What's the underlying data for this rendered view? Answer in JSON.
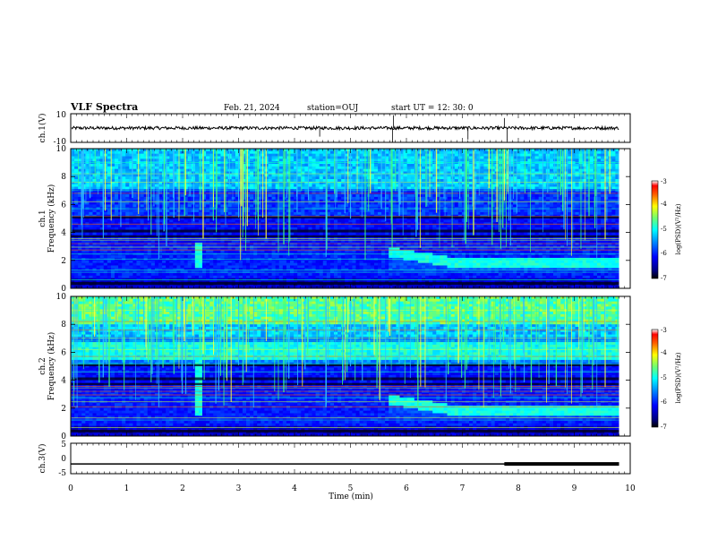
{
  "header": {
    "title": "VLF Spectra",
    "date": "Feb. 21, 2024",
    "station": "station=OUJ",
    "start": "start  UT =   12: 30: 0"
  },
  "chart_data": [
    {
      "type": "line",
      "panel": "ch1-waveform",
      "ylabel": "ch.1(V)",
      "ylim": [
        -10,
        10
      ],
      "yticks": [
        "10",
        "-10"
      ],
      "baseline": 0,
      "color": "#000000"
    },
    {
      "type": "heatmap",
      "panel": "ch1-spectrogram",
      "ylabel": "ch.1",
      "ylabel2": "Frequency  (kHz)",
      "ylim": [
        0,
        10
      ],
      "yticks": [
        "0",
        "2",
        "4",
        "6",
        "8",
        "10"
      ],
      "colorbar": {
        "label": "log(PSD)(V²/Hz)",
        "range": [
          -7,
          -3
        ],
        "ticks": [
          "-3",
          "-4",
          "-5",
          "-6",
          "-7"
        ]
      },
      "features": [
        {
          "kind": "burst",
          "t": 2.3,
          "freq": [
            1.5,
            3.2
          ]
        },
        {
          "kind": "hiss-band",
          "t": [
            5.7,
            9.8
          ],
          "freq": [
            1.6,
            2.6
          ]
        }
      ]
    },
    {
      "type": "heatmap",
      "panel": "ch2-spectrogram",
      "ylabel": "ch.2",
      "ylabel2": "Frequency  (kHz)",
      "ylim": [
        0,
        10
      ],
      "yticks": [
        "0",
        "2",
        "4",
        "6",
        "8",
        "10"
      ],
      "colorbar": {
        "label": "log(PSD)(V²/Hz)",
        "range": [
          -7,
          -3
        ],
        "ticks": [
          "-3",
          "-4",
          "-5",
          "-6",
          "-7"
        ]
      },
      "features": [
        {
          "kind": "burst",
          "t": 2.3,
          "freq": [
            1.5,
            6
          ]
        },
        {
          "kind": "hiss-band",
          "t": [
            5.7,
            9.8
          ],
          "freq": [
            1.6,
            2.6
          ]
        },
        {
          "kind": "hiss-band",
          "t": [
            0,
            9.8
          ],
          "freq": [
            5.5,
            6.8
          ]
        }
      ]
    },
    {
      "type": "line",
      "panel": "ch3-waveform",
      "ylabel": "ch.3(V)",
      "ylim": [
        -5,
        5
      ],
      "yticks": [
        "5",
        "0",
        "-5"
      ],
      "level": -1.8,
      "thick_from": 7.75,
      "thick_to": 9.8
    }
  ],
  "xaxis": {
    "label": "Time  (min)",
    "range": [
      0,
      10
    ],
    "ticks": [
      "0",
      "1",
      "2",
      "3",
      "4",
      "5",
      "6",
      "7",
      "8",
      "9",
      "10"
    ],
    "data_end": 9.8
  }
}
